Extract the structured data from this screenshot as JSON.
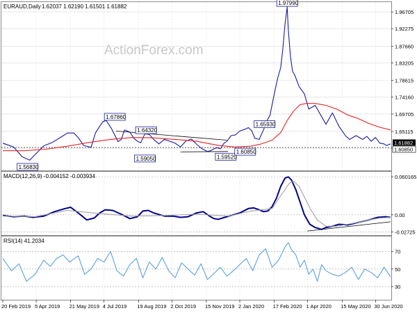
{
  "header": {
    "symbol": "EURAUD,Daily",
    "ohlc": "1.62037 1.62190 1.61501 1.61882"
  },
  "watermark": "ActionForex.com",
  "colors": {
    "price": "#1a1aa0",
    "ma": "#e62222",
    "macd": "#00008b",
    "signal": "#a0a0a0",
    "rsi": "#5aa0dc",
    "trend": "#000000",
    "grid": "#d9d9d9",
    "frame": "#8a8a8a"
  },
  "chart_data": [
    {
      "type": "line",
      "panel": "price",
      "title": "EURAUD,Daily",
      "y_ticks": [
        "1.96705",
        "1.92275",
        "1.87660",
        "1.83205",
        "1.78615",
        "1.74160",
        "1.69705",
        "1.65115",
        "1.60660"
      ],
      "ylim": [
        1.548,
        1.993
      ],
      "x_ticks": [
        "20 Feb 2019",
        "5 Apr 2019",
        "21 May 2019",
        "4 Jul 2019",
        "19 Aug 2019",
        "2 Oct 2019",
        "15 Nov 2019",
        "2 Jan 2020",
        "17 Feb 2020",
        "1 Apr 2020",
        "15 May 2020",
        "30 Jun 2020"
      ],
      "x_index": [
        0,
        31,
        63,
        94,
        126,
        157,
        189,
        220,
        252,
        283,
        315,
        346
      ],
      "series": [
        {
          "type": "line",
          "color": "#1a1aa0",
          "x": [
            0,
            10,
            18,
            25,
            30,
            38,
            46,
            55,
            60,
            66,
            70,
            75,
            82,
            86,
            90,
            93,
            96,
            101,
            104,
            107,
            110,
            113,
            118,
            122,
            125,
            128,
            132,
            136,
            140,
            145,
            150,
            155,
            160,
            165,
            170,
            175,
            180,
            185,
            190,
            193,
            196,
            199,
            202,
            205,
            208,
            212,
            216,
            220,
            225,
            228,
            231,
            234,
            238,
            242,
            246,
            248,
            252,
            255,
            258,
            260,
            262,
            264,
            265,
            267,
            269,
            271,
            275,
            280,
            284,
            290,
            296,
            300,
            306,
            312,
            318,
            322,
            328,
            334,
            338,
            342,
            346,
            350,
            354,
            356,
            360
          ],
          "values": [
            1.62,
            1.61,
            1.584,
            1.575,
            1.59,
            1.613,
            1.622,
            1.638,
            1.647,
            1.647,
            1.635,
            1.614,
            1.609,
            1.647,
            1.665,
            1.677,
            1.68,
            1.658,
            1.641,
            1.624,
            1.63,
            1.655,
            1.649,
            1.632,
            1.625,
            1.621,
            1.645,
            1.643,
            1.63,
            1.618,
            1.63,
            1.625,
            1.62,
            1.61,
            1.626,
            1.631,
            1.617,
            1.605,
            1.598,
            1.6,
            1.605,
            1.608,
            1.605,
            1.619,
            1.625,
            1.64,
            1.642,
            1.652,
            1.657,
            1.661,
            1.653,
            1.633,
            1.63,
            1.655,
            1.684,
            1.693,
            1.75,
            1.79,
            1.82,
            1.87,
            1.935,
            1.98,
            1.92,
            1.85,
            1.81,
            1.8,
            1.77,
            1.75,
            1.71,
            1.72,
            1.69,
            1.67,
            1.7,
            1.665,
            1.64,
            1.63,
            1.64,
            1.63,
            1.638,
            1.625,
            1.635,
            1.62,
            1.618,
            1.614,
            1.618
          ]
        },
        {
          "type": "line",
          "color": "#e62222",
          "x": [
            0,
            20,
            40,
            60,
            80,
            100,
            120,
            140,
            160,
            180,
            200,
            215,
            230,
            240,
            250,
            258,
            264,
            270,
            276,
            282,
            290,
            300,
            310,
            320,
            330,
            340,
            350,
            360
          ],
          "values": [
            1.6,
            1.6,
            1.604,
            1.612,
            1.622,
            1.63,
            1.635,
            1.634,
            1.63,
            1.625,
            1.614,
            1.61,
            1.612,
            1.618,
            1.628,
            1.648,
            1.68,
            1.705,
            1.722,
            1.725,
            1.725,
            1.72,
            1.71,
            1.695,
            1.685,
            1.672,
            1.662,
            1.655
          ]
        },
        {
          "type": "line",
          "color": "#000000",
          "x": [
            105,
            208
          ],
          "values": [
            1.652,
            1.628
          ]
        },
        {
          "type": "line",
          "color": "#000000",
          "x": [
            165,
            209
          ],
          "values": [
            1.597,
            1.598
          ]
        }
      ],
      "annotations": [
        "1.97990",
        "1.67860",
        "1.64320",
        "1.65930",
        "1.56830",
        "1.59050",
        "1.59520",
        "1.60850"
      ],
      "annotation_values": [
        1.9799,
        1.6786,
        1.6432,
        1.6593,
        1.5683,
        1.5905,
        1.5952,
        1.6085
      ],
      "annotation_x": [
        264,
        104,
        133,
        243,
        23,
        132,
        207,
        225
      ],
      "last_value": "1.61882",
      "last_label": "1.61882",
      "level_label": "1.60850"
    },
    {
      "type": "line",
      "panel": "macd",
      "title": "MACD(12,26,9) -0.004152 -0.003934",
      "y_ticks": [
        "0.060165",
        "0.00",
        "-0.02725"
      ],
      "ylim": [
        -0.032,
        0.068
      ],
      "series": [
        {
          "type": "line",
          "name": "MACD",
          "color": "#00008b",
          "x": [
            0,
            10,
            20,
            28,
            38,
            48,
            58,
            63,
            70,
            78,
            85,
            90,
            95,
            102,
            110,
            118,
            125,
            130,
            135,
            140,
            150,
            158,
            165,
            172,
            180,
            186,
            192,
            196,
            200,
            206,
            212,
            220,
            228,
            233,
            238,
            242,
            246,
            250,
            254,
            258,
            262,
            265,
            268,
            272,
            276,
            280,
            285,
            290,
            296,
            300,
            306,
            312,
            320,
            330,
            340,
            348,
            355,
            360
          ],
          "values": [
            -0.001,
            -0.003,
            -0.002,
            -0.004,
            -0.002,
            0.005,
            0.01,
            0.012,
            0.003,
            -0.008,
            -0.005,
            0.003,
            0.008,
            0.007,
            0.001,
            -0.006,
            -0.003,
            0.006,
            0.007,
            0.003,
            -0.002,
            -0.002,
            -0.004,
            -0.003,
            0.003,
            0.005,
            -0.002,
            -0.006,
            -0.007,
            -0.004,
            -0.001,
            0.003,
            0.01,
            0.011,
            0.008,
            0.005,
            0.006,
            0.013,
            0.026,
            0.045,
            0.058,
            0.06,
            0.055,
            0.04,
            0.02,
            0.0,
            -0.015,
            -0.02,
            -0.023,
            -0.02,
            -0.018,
            -0.015,
            -0.016,
            -0.012,
            -0.008,
            -0.004,
            -0.003,
            -0.004
          ]
        },
        {
          "type": "line",
          "name": "Signal",
          "color": "#a0a0a0",
          "x": [
            0,
            30,
            60,
            90,
            120,
            150,
            180,
            210,
            230,
            250,
            260,
            266,
            270,
            275,
            280,
            286,
            292,
            300,
            310,
            320,
            330,
            340,
            350,
            360
          ],
          "values": [
            -0.002,
            -0.003,
            0.007,
            0.002,
            -0.002,
            -0.001,
            0.001,
            -0.002,
            0.006,
            0.01,
            0.035,
            0.05,
            0.053,
            0.045,
            0.028,
            0.008,
            -0.008,
            -0.018,
            -0.018,
            -0.015,
            -0.012,
            -0.008,
            -0.005,
            -0.004
          ]
        },
        {
          "type": "line",
          "color": "#000000",
          "x": [
            283,
            360
          ],
          "values": [
            -0.0255,
            -0.011
          ]
        }
      ]
    },
    {
      "type": "line",
      "panel": "rsi",
      "title": "RSI(14) 41.2034",
      "y_ticks": [
        "70",
        "50",
        "30"
      ],
      "ylim": [
        15,
        87
      ],
      "series": [
        {
          "type": "line",
          "name": "RSI",
          "color": "#5aa0dc",
          "x": [
            0,
            8,
            15,
            22,
            30,
            38,
            44,
            50,
            56,
            62,
            70,
            76,
            82,
            88,
            94,
            100,
            106,
            112,
            118,
            124,
            130,
            136,
            142,
            148,
            154,
            160,
            166,
            172,
            178,
            184,
            190,
            196,
            202,
            208,
            214,
            220,
            226,
            232,
            238,
            244,
            250,
            256,
            262,
            265,
            268,
            272,
            276,
            280,
            284,
            288,
            292,
            296,
            300,
            306,
            312,
            318,
            324,
            330,
            336,
            342,
            348,
            354,
            360
          ],
          "values": [
            62,
            48,
            56,
            36,
            44,
            60,
            53,
            62,
            66,
            58,
            65,
            44,
            50,
            62,
            58,
            70,
            48,
            42,
            55,
            62,
            40,
            58,
            50,
            63,
            48,
            40,
            57,
            50,
            43,
            56,
            38,
            45,
            52,
            42,
            48,
            55,
            62,
            48,
            66,
            73,
            52,
            60,
            75,
            80,
            72,
            66,
            52,
            60,
            44,
            50,
            36,
            55,
            48,
            44,
            42,
            46,
            52,
            38,
            50,
            46,
            40,
            52,
            41
          ]
        }
      ]
    }
  ]
}
